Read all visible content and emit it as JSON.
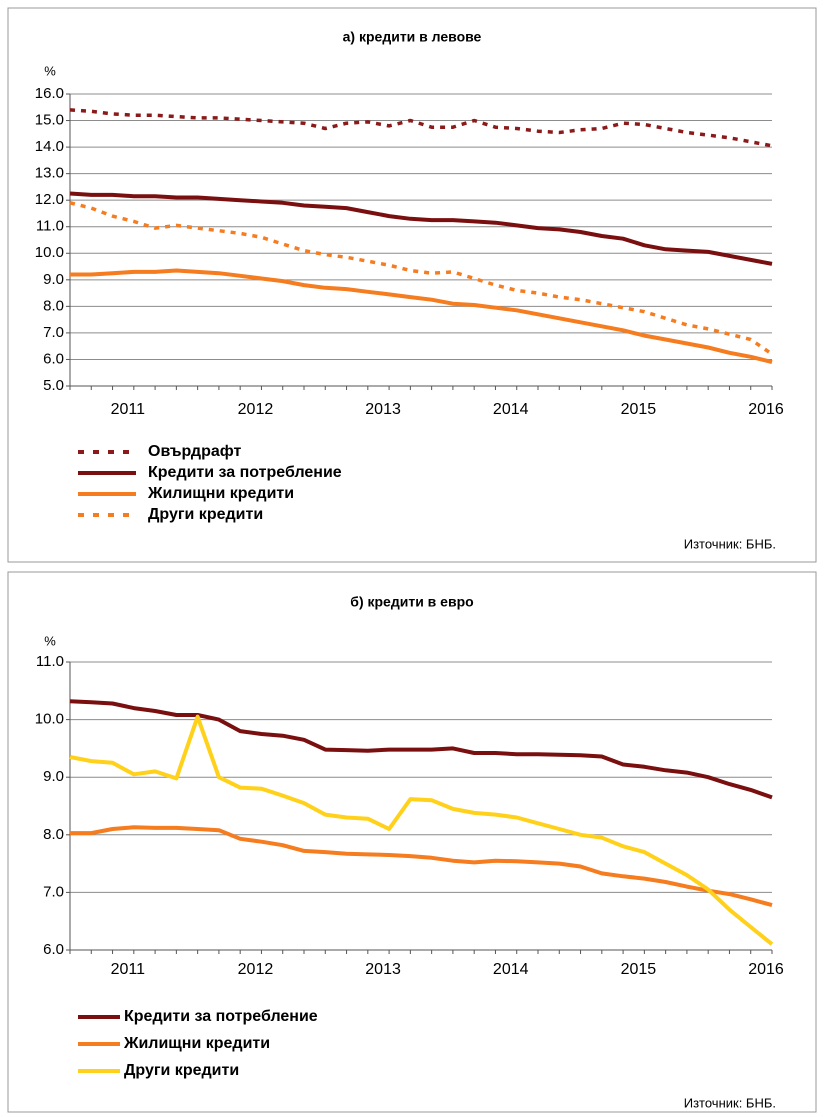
{
  "chart_data": [
    {
      "type": "line",
      "title": "а) кредити в левове",
      "y_label": "%",
      "source": "Източник: БНБ.",
      "grid": true,
      "ylim": [
        5,
        16
      ],
      "yticks": [
        {
          "value": 5,
          "label": "5.0"
        },
        {
          "value": 6,
          "label": "6.0"
        },
        {
          "value": 7,
          "label": "7.0"
        },
        {
          "value": 8,
          "label": "8.0"
        },
        {
          "value": 9,
          "label": "9.0"
        },
        {
          "value": 10,
          "label": "10.0"
        },
        {
          "value": 11,
          "label": "11.0"
        },
        {
          "value": 12,
          "label": "12.0"
        },
        {
          "value": 13,
          "label": "13.0"
        },
        {
          "value": 14,
          "label": "14.0"
        },
        {
          "value": 15,
          "label": "15.0"
        },
        {
          "value": 16,
          "label": "16.0"
        }
      ],
      "categories": [
        null,
        null,
        null,
        "2011",
        null,
        null,
        null,
        null,
        null,
        "2012",
        null,
        null,
        null,
        null,
        null,
        "2013",
        null,
        null,
        null,
        null,
        null,
        "2014",
        null,
        null,
        null,
        null,
        null,
        "2015",
        null,
        null,
        null,
        null,
        null,
        "2016"
      ],
      "series": [
        {
          "name": "Овърдрафт",
          "color": "#8b1a1a",
          "dashed": true,
          "values": [
            15.4,
            15.35,
            15.25,
            15.2,
            15.2,
            15.15,
            15.1,
            15.1,
            15.05,
            15.0,
            14.95,
            14.9,
            14.7,
            14.9,
            14.95,
            14.8,
            15.0,
            14.75,
            14.75,
            15.0,
            14.75,
            14.7,
            14.6,
            14.55,
            14.65,
            14.7,
            14.9,
            14.85,
            14.7,
            14.55,
            14.45,
            14.35,
            14.2,
            14.05
          ]
        },
        {
          "name": "Кредити за потребление",
          "color": "#7a0f0f",
          "dashed": false,
          "values": [
            12.25,
            12.2,
            12.2,
            12.15,
            12.15,
            12.1,
            12.1,
            12.05,
            12.0,
            11.95,
            11.9,
            11.8,
            11.75,
            11.7,
            11.55,
            11.4,
            11.3,
            11.25,
            11.25,
            11.2,
            11.15,
            11.05,
            10.95,
            10.9,
            10.8,
            10.65,
            10.55,
            10.3,
            10.15,
            10.1,
            10.05,
            9.9,
            9.75,
            9.6
          ]
        },
        {
          "name": "Жилищни кредити",
          "color": "#f57c1f",
          "dashed": false,
          "values": [
            9.2,
            9.2,
            9.25,
            9.3,
            9.3,
            9.35,
            9.3,
            9.25,
            9.15,
            9.05,
            8.95,
            8.8,
            8.7,
            8.65,
            8.55,
            8.45,
            8.35,
            8.25,
            8.1,
            8.05,
            7.95,
            7.85,
            7.7,
            7.55,
            7.4,
            7.25,
            7.1,
            6.9,
            6.75,
            6.6,
            6.45,
            6.25,
            6.1,
            5.9
          ]
        },
        {
          "name": "Други кредити",
          "color": "#f57c1f",
          "dashed": true,
          "values": [
            11.9,
            11.7,
            11.4,
            11.2,
            10.95,
            11.05,
            10.95,
            10.85,
            10.75,
            10.6,
            10.35,
            10.1,
            9.95,
            9.85,
            9.7,
            9.55,
            9.35,
            9.25,
            9.3,
            9.05,
            8.8,
            8.6,
            8.5,
            8.35,
            8.25,
            8.1,
            7.95,
            7.8,
            7.55,
            7.3,
            7.15,
            6.95,
            6.75,
            6.2
          ]
        }
      ]
    },
    {
      "type": "line",
      "title": "б) кредити в евро",
      "y_label": "%",
      "source": "Източник: БНБ.",
      "grid": true,
      "ylim": [
        6,
        11
      ],
      "yticks": [
        {
          "value": 6,
          "label": "6.0"
        },
        {
          "value": 7,
          "label": "7.0"
        },
        {
          "value": 8,
          "label": "8.0"
        },
        {
          "value": 9,
          "label": "9.0"
        },
        {
          "value": 10,
          "label": "10.0"
        },
        {
          "value": 11,
          "label": "11.0"
        }
      ],
      "categories": [
        null,
        null,
        null,
        "2011",
        null,
        null,
        null,
        null,
        null,
        "2012",
        null,
        null,
        null,
        null,
        null,
        "2013",
        null,
        null,
        null,
        null,
        null,
        "2014",
        null,
        null,
        null,
        null,
        null,
        "2015",
        null,
        null,
        null,
        null,
        null,
        "2016"
      ],
      "series": [
        {
          "name": "Кредити за потребление",
          "color": "#7a0f0f",
          "dashed": false,
          "values": [
            10.32,
            10.3,
            10.28,
            10.2,
            10.15,
            10.08,
            10.08,
            10.0,
            9.8,
            9.75,
            9.72,
            9.65,
            9.48,
            9.47,
            9.46,
            9.48,
            9.48,
            9.48,
            9.5,
            9.42,
            9.42,
            9.4,
            9.4,
            9.39,
            9.38,
            9.36,
            9.22,
            9.18,
            9.12,
            9.08,
            9.0,
            8.88,
            8.78,
            8.65
          ]
        },
        {
          "name": "Жилищни кредити",
          "color": "#f57c1f",
          "dashed": false,
          "values": [
            8.03,
            8.03,
            8.1,
            8.13,
            8.12,
            8.12,
            8.1,
            8.08,
            7.93,
            7.88,
            7.82,
            7.72,
            7.7,
            7.67,
            7.66,
            7.65,
            7.63,
            7.6,
            7.55,
            7.52,
            7.55,
            7.54,
            7.52,
            7.5,
            7.45,
            7.33,
            7.28,
            7.24,
            7.18,
            7.1,
            7.03,
            6.97,
            6.88,
            6.78
          ]
        },
        {
          "name": "Други кредити",
          "color": "#ffd11a",
          "dashed": false,
          "values": [
            9.35,
            9.28,
            9.25,
            9.05,
            9.1,
            8.98,
            10.05,
            9.0,
            8.82,
            8.8,
            8.68,
            8.55,
            8.35,
            8.3,
            8.28,
            8.1,
            8.62,
            8.6,
            8.45,
            8.38,
            8.35,
            8.3,
            8.2,
            8.1,
            8.0,
            7.95,
            7.8,
            7.7,
            7.5,
            7.3,
            7.05,
            6.7,
            6.4,
            6.1
          ]
        }
      ]
    }
  ]
}
